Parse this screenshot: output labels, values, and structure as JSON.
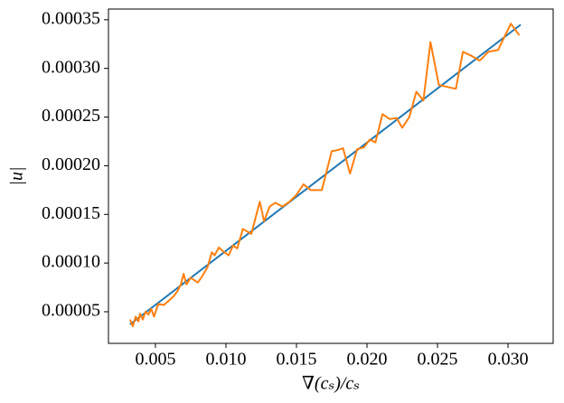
{
  "chart_data": {
    "type": "line",
    "xlabel": "∇(cₛ)/cₛ",
    "ylabel": "|u|",
    "xlim": [
      0.00167,
      0.0332
    ],
    "ylim": [
      1.75e-05,
      0.000361
    ],
    "xticks": [
      0.005,
      {
        "value": 0.01,
        "label": "0.010"
      },
      0.015,
      {
        "value": 0.02,
        "label": "0.020"
      },
      0.025,
      {
        "value": 0.03,
        "label": "0.030"
      }
    ],
    "yticks": [
      5e-05,
      {
        "value": 0.0001,
        "label": "0.00010"
      },
      0.00015,
      {
        "value": 0.0002,
        "label": "0.00020"
      },
      0.00025,
      {
        "value": 0.0003,
        "label": "0.00030"
      },
      0.00035
    ],
    "series": [
      {
        "color": "#1f77b4",
        "x": [
          0.0032,
          0.0309
        ],
        "values": [
          3.7e-05,
          0.000345
        ]
      },
      {
        "color": "#ff7f0e",
        "x": [
          0.0032,
          0.0034,
          0.0036,
          0.0038,
          0.0039,
          0.0041,
          0.0043,
          0.0045,
          0.0047,
          0.0049,
          0.0052,
          0.0056,
          0.006,
          0.0063,
          0.0066,
          0.0068,
          0.007,
          0.0072,
          0.0075,
          0.0078,
          0.008,
          0.0083,
          0.0087,
          0.009,
          0.0092,
          0.0095,
          0.0098,
          0.0102,
          0.0105,
          0.0108,
          0.0112,
          0.0118,
          0.0124,
          0.0127,
          0.0131,
          0.0135,
          0.014,
          0.0145,
          0.015,
          0.0155,
          0.016,
          0.0168,
          0.0175,
          0.0179,
          0.0183,
          0.0188,
          0.0193,
          0.0198,
          0.0202,
          0.0206,
          0.0211,
          0.0216,
          0.0221,
          0.0225,
          0.023,
          0.0235,
          0.024,
          0.0245,
          0.0251,
          0.0257,
          0.0263,
          0.0268,
          0.0274,
          0.028,
          0.0286,
          0.0293,
          0.0302,
          0.0308
        ],
        "values": [
          4.2e-05,
          3.5e-05,
          4.5e-05,
          4e-05,
          4.8e-05,
          4.2e-05,
          5e-05,
          4.7e-05,
          5.3e-05,
          4.5e-05,
          5.8e-05,
          5.7e-05,
          6.2e-05,
          6.6e-05,
          7.2e-05,
          7.8e-05,
          8.9e-05,
          7.8e-05,
          8.5e-05,
          8.2e-05,
          8e-05,
          8.6e-05,
          9.6e-05,
          0.000111,
          0.000108,
          0.000116,
          0.000112,
          0.000108,
          0.000118,
          0.000115,
          0.000135,
          0.00013,
          0.000163,
          0.000143,
          0.000158,
          0.000162,
          0.000158,
          0.000163,
          0.00017,
          0.000181,
          0.000175,
          0.000175,
          0.000215,
          0.000216,
          0.000218,
          0.000192,
          0.000217,
          0.000219,
          0.000227,
          0.000224,
          0.000253,
          0.000248,
          0.000249,
          0.000239,
          0.00025,
          0.000276,
          0.000267,
          0.000327,
          0.000283,
          0.000281,
          0.000279,
          0.000317,
          0.000313,
          0.000308,
          0.000317,
          0.000319,
          0.000346,
          0.000334
        ]
      }
    ]
  }
}
